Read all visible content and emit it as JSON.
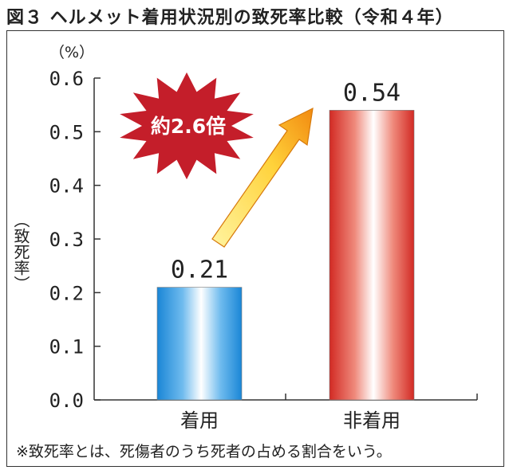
{
  "title": "図３ ヘルメット着用状況別の致死率比較（令和４年）",
  "unit_label": "（%）",
  "ylabel": "（致死率）",
  "annotation": "約2.6倍",
  "footnote": "※致死率とは、死傷者のうち死者の占める割合をいう。",
  "colors": {
    "bar_wearing": "#1e8fd8",
    "bar_not_wearing": "#d9362b",
    "burst": "#c41e2a",
    "arrow": "#f7b219"
  },
  "chart_data": {
    "type": "bar",
    "categories": [
      "着用",
      "非着用"
    ],
    "values": [
      0.21,
      0.54
    ],
    "data_labels": [
      "0.21",
      "0.54"
    ],
    "yticks": [
      "0.0",
      "0.1",
      "0.2",
      "0.3",
      "0.4",
      "0.5",
      "0.6"
    ],
    "ylim": [
      0,
      0.6
    ],
    "title": "図３ ヘルメット着用状況別の致死率比較（令和４年）",
    "ylabel": "致死率",
    "xlabel": ""
  }
}
